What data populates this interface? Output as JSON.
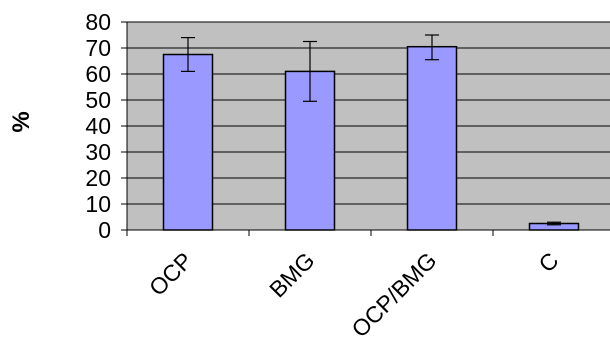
{
  "colors": {
    "plot_background": "#c0c0c0",
    "bar_fill": "#9999ff",
    "bar_stroke": "#000000",
    "gridline": "#000000",
    "error_bar": "#000000"
  },
  "chart_data": {
    "type": "bar",
    "ylabel": "%",
    "ylim": [
      0,
      80
    ],
    "yticks": [
      0,
      10,
      20,
      30,
      40,
      50,
      60,
      70,
      80
    ],
    "grid": "horizontal major gridlines",
    "legend": "none",
    "categories": [
      "OCP",
      "BMG",
      "OCP/BMG",
      "C"
    ],
    "values": [
      67.5,
      61,
      70.5,
      2.5
    ],
    "error_low": [
      61,
      49.5,
      65.5,
      2
    ],
    "error_high": [
      74,
      72.5,
      75,
      3
    ]
  }
}
